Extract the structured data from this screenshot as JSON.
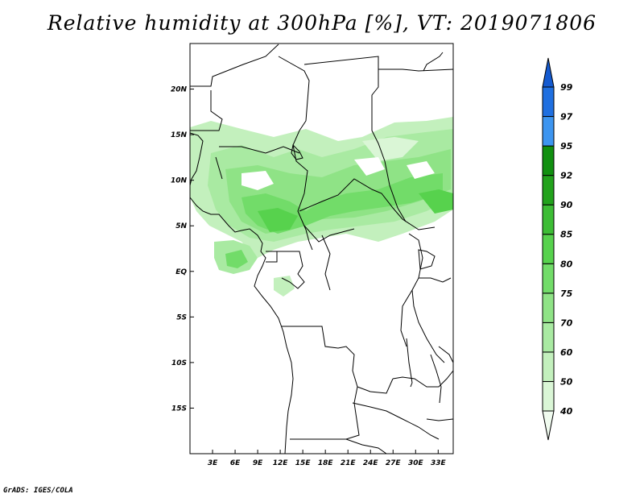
{
  "title": "Relative humidity at 300hPa [%], VT: 2019071806",
  "credit": "GrADS: IGES/COLA",
  "map": {
    "lon_ticks": [
      "3E",
      "6E",
      "9E",
      "12E",
      "15E",
      "18E",
      "21E",
      "24E",
      "27E",
      "30E",
      "33E"
    ],
    "lat_ticks": [
      "20N",
      "15N",
      "10N",
      "5N",
      "EQ",
      "5S",
      "10S",
      "15S"
    ],
    "lon_range": [
      0,
      35
    ],
    "lat_range": [
      -20,
      25
    ]
  },
  "legend": {
    "levels": [
      "40",
      "50",
      "60",
      "70",
      "75",
      "80",
      "85",
      "90",
      "92",
      "95",
      "97",
      "99"
    ],
    "colors": [
      "#f0fbef",
      "#daf6d6",
      "#c3f0bd",
      "#a9eaa2",
      "#8fe386",
      "#72dc69",
      "#57d24d",
      "#3dbd35",
      "#22a21c",
      "#119010",
      "#3d95f0",
      "#1f6fe0",
      "#145ad0"
    ]
  }
}
